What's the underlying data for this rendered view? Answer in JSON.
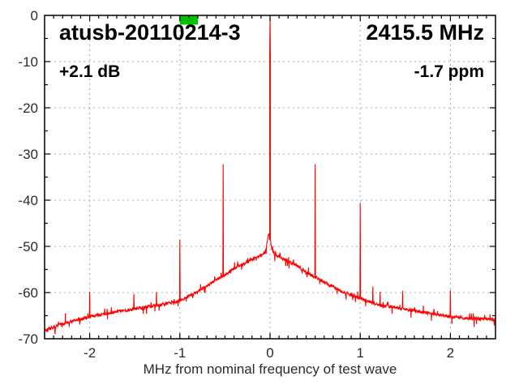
{
  "chart_data": {
    "type": "line",
    "title": "atusb-20110214-3",
    "annotations": {
      "center_frequency": "2415.5 MHz",
      "level_offset": "+2.1 dB",
      "frequency_offset": "-1.7 ppm"
    },
    "xlabel": "MHz from nominal frequency of test wave",
    "ylabel": "",
    "xlim": [
      -2.5,
      2.5
    ],
    "ylim": [
      -70,
      0
    ],
    "x_ticks": [
      -2,
      -1,
      0,
      1,
      2
    ],
    "y_ticks": [
      0,
      -10,
      -20,
      -30,
      -40,
      -50,
      -60,
      -70
    ],
    "x_minor_step": 0.1,
    "y_minor_step": 5,
    "grid": true,
    "grid_color": "#aaaaaa",
    "legend": "none",
    "marker_box": {
      "x_range": [
        -1.0,
        -0.8
      ],
      "db_range": [
        0,
        -2
      ],
      "color": "#00c000"
    },
    "series": [
      {
        "name": "spectrum",
        "color": "#ff0000",
        "carrier": {
          "x": 0,
          "peak_db": 0,
          "wide_below_db": -8.5
        },
        "spurs": [
          [
            -2.27,
            -64.5
          ],
          [
            -2.0,
            -59.8
          ],
          [
            -1.76,
            -63.2
          ],
          [
            -1.51,
            -60.3
          ],
          [
            -1.26,
            -59.9
          ],
          [
            -1.0,
            -48.6
          ],
          [
            -0.52,
            -32.2
          ],
          [
            0.5,
            -32.2
          ],
          [
            1.0,
            -40.6
          ],
          [
            1.14,
            -58.7
          ],
          [
            1.22,
            -59.8
          ],
          [
            1.47,
            -59.6
          ],
          [
            1.7,
            -62.8
          ],
          [
            2.0,
            -59.5
          ]
        ],
        "noise_floor": [
          [
            -2.5,
            -68.2
          ],
          [
            -2.3,
            -66.8
          ],
          [
            -2.0,
            -65.2
          ],
          [
            -1.7,
            -64.2
          ],
          [
            -1.4,
            -63.2
          ],
          [
            -1.2,
            -62.6
          ],
          [
            -1.0,
            -61.8
          ],
          [
            -0.8,
            -59.8
          ],
          [
            -0.6,
            -57.2
          ],
          [
            -0.5,
            -56.2
          ],
          [
            -0.4,
            -54.8
          ],
          [
            -0.3,
            -53.8
          ],
          [
            -0.2,
            -52.8
          ],
          [
            -0.12,
            -52.2
          ],
          [
            -0.05,
            -51.2
          ],
          [
            -0.035,
            -49.2
          ],
          [
            -0.02,
            -47.8
          ],
          [
            -0.012,
            -47.2
          ],
          [
            -0.006,
            -48.2
          ],
          [
            0.006,
            -48.6
          ],
          [
            0.012,
            -49.6
          ],
          [
            0.02,
            -50.4
          ],
          [
            0.035,
            -51.2
          ],
          [
            0.05,
            -51.8
          ],
          [
            0.12,
            -52.4
          ],
          [
            0.2,
            -53.2
          ],
          [
            0.3,
            -54.2
          ],
          [
            0.4,
            -55.6
          ],
          [
            0.5,
            -56.6
          ],
          [
            0.6,
            -57.8
          ],
          [
            0.8,
            -59.8
          ],
          [
            1.0,
            -61.2
          ],
          [
            1.2,
            -62.6
          ],
          [
            1.5,
            -63.6
          ],
          [
            1.8,
            -64.6
          ],
          [
            2.0,
            -65.2
          ],
          [
            2.2,
            -65.6
          ],
          [
            2.5,
            -65.8
          ]
        ],
        "noise_band_db": 0.7,
        "spike_up_db": 1.2,
        "spike_down_db": 1.7
      }
    ]
  }
}
